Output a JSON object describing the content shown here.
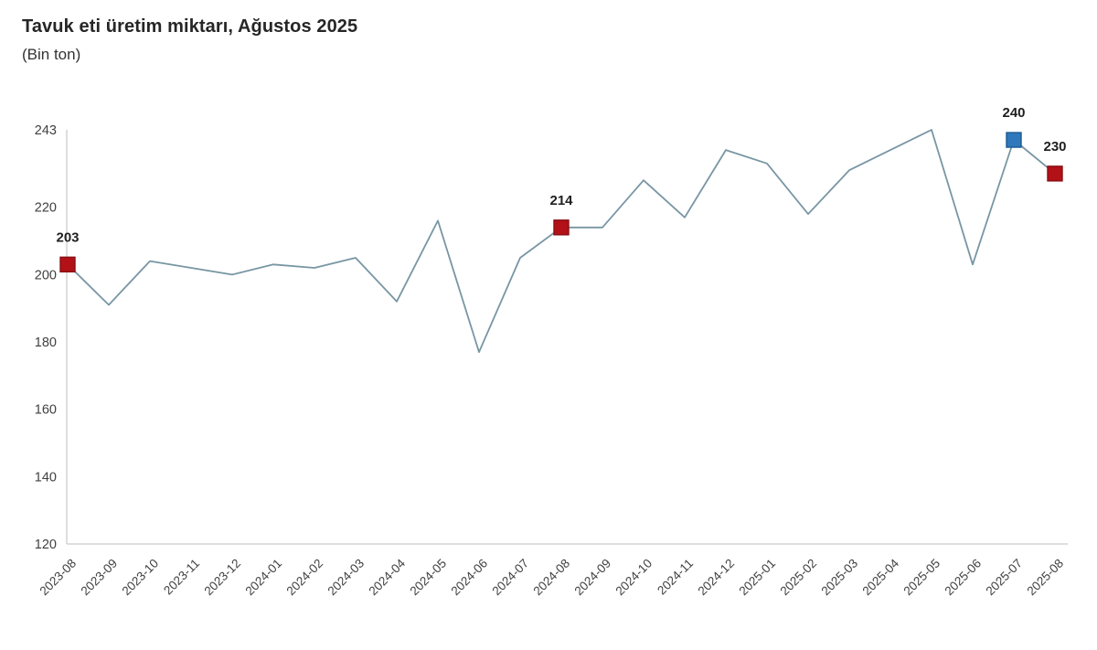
{
  "header": {
    "title": "Tavuk eti üretim miktarı, Ağustos 2025",
    "subtitle": "(Bin ton)"
  },
  "chart_data": {
    "type": "line",
    "title": "Tavuk eti üretim miktarı, Ağustos 2025",
    "subtitle": "(Bin ton)",
    "unit": "Bin ton",
    "categories": [
      "2023-08",
      "2023-09",
      "2023-10",
      "2023-11",
      "2023-12",
      "2024-01",
      "2024-02",
      "2024-03",
      "2024-04",
      "2024-05",
      "2024-06",
      "2024-07",
      "2024-08",
      "2024-09",
      "2024-10",
      "2024-11",
      "2024-12",
      "2025-01",
      "2025-02",
      "2025-03",
      "2025-04",
      "2025-05",
      "2025-06",
      "2025-07",
      "2025-08"
    ],
    "values": [
      203,
      191,
      204,
      202,
      200,
      203,
      202,
      205,
      192,
      216,
      177,
      205,
      214,
      214,
      228,
      217,
      237,
      233,
      218,
      231,
      237,
      243,
      203,
      240,
      230
    ],
    "ylim": [
      120,
      243
    ],
    "yticks": [
      243,
      220,
      200,
      180,
      160,
      140,
      120
    ],
    "grid": false,
    "legend": "none",
    "line_color": "#7896a4",
    "axis_color": "#c9c9c9",
    "tick_text_color": "#404040",
    "label_text_color": "#1f1f1f",
    "highlighted_points": [
      {
        "category": "2023-08",
        "value": 203,
        "label": "203",
        "fill": "#b11117",
        "border": "#8a0d12"
      },
      {
        "category": "2024-08",
        "value": 214,
        "label": "214",
        "fill": "#b11117",
        "border": "#8a0d12"
      },
      {
        "category": "2025-07",
        "value": 240,
        "label": "240",
        "fill": "#2e78bb",
        "border": "#1d5a94"
      },
      {
        "category": "2025-08",
        "value": 230,
        "label": "230",
        "fill": "#b11117",
        "border": "#8a0d12"
      }
    ]
  }
}
